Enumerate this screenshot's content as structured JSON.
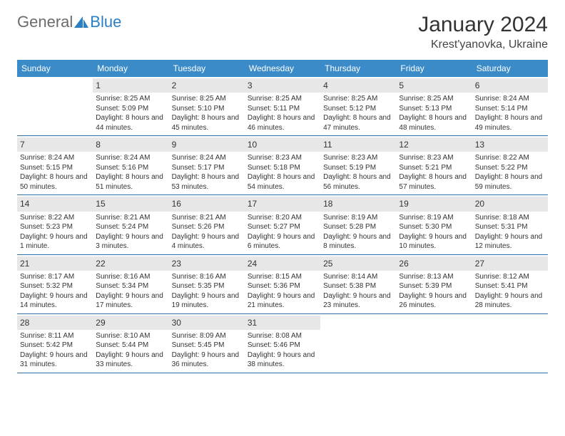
{
  "logo": {
    "word1": "General",
    "word2": "Blue"
  },
  "header": {
    "month": "January 2024",
    "location": "Krest'yanovka, Ukraine"
  },
  "colors": {
    "header_bg": "#3b8bc9",
    "header_text": "#ffffff",
    "daynum_bg": "#e7e7e7",
    "rule": "#2f6fa8",
    "logo_gray": "#6b6b6b",
    "logo_blue": "#2d7fc4"
  },
  "dow": [
    "Sunday",
    "Monday",
    "Tuesday",
    "Wednesday",
    "Thursday",
    "Friday",
    "Saturday"
  ],
  "weeks": [
    [
      {
        "n": "",
        "sr": "",
        "ss": "",
        "dl": ""
      },
      {
        "n": "1",
        "sr": "Sunrise: 8:25 AM",
        "ss": "Sunset: 5:09 PM",
        "dl": "Daylight: 8 hours and 44 minutes."
      },
      {
        "n": "2",
        "sr": "Sunrise: 8:25 AM",
        "ss": "Sunset: 5:10 PM",
        "dl": "Daylight: 8 hours and 45 minutes."
      },
      {
        "n": "3",
        "sr": "Sunrise: 8:25 AM",
        "ss": "Sunset: 5:11 PM",
        "dl": "Daylight: 8 hours and 46 minutes."
      },
      {
        "n": "4",
        "sr": "Sunrise: 8:25 AM",
        "ss": "Sunset: 5:12 PM",
        "dl": "Daylight: 8 hours and 47 minutes."
      },
      {
        "n": "5",
        "sr": "Sunrise: 8:25 AM",
        "ss": "Sunset: 5:13 PM",
        "dl": "Daylight: 8 hours and 48 minutes."
      },
      {
        "n": "6",
        "sr": "Sunrise: 8:24 AM",
        "ss": "Sunset: 5:14 PM",
        "dl": "Daylight: 8 hours and 49 minutes."
      }
    ],
    [
      {
        "n": "7",
        "sr": "Sunrise: 8:24 AM",
        "ss": "Sunset: 5:15 PM",
        "dl": "Daylight: 8 hours and 50 minutes."
      },
      {
        "n": "8",
        "sr": "Sunrise: 8:24 AM",
        "ss": "Sunset: 5:16 PM",
        "dl": "Daylight: 8 hours and 51 minutes."
      },
      {
        "n": "9",
        "sr": "Sunrise: 8:24 AM",
        "ss": "Sunset: 5:17 PM",
        "dl": "Daylight: 8 hours and 53 minutes."
      },
      {
        "n": "10",
        "sr": "Sunrise: 8:23 AM",
        "ss": "Sunset: 5:18 PM",
        "dl": "Daylight: 8 hours and 54 minutes."
      },
      {
        "n": "11",
        "sr": "Sunrise: 8:23 AM",
        "ss": "Sunset: 5:19 PM",
        "dl": "Daylight: 8 hours and 56 minutes."
      },
      {
        "n": "12",
        "sr": "Sunrise: 8:23 AM",
        "ss": "Sunset: 5:21 PM",
        "dl": "Daylight: 8 hours and 57 minutes."
      },
      {
        "n": "13",
        "sr": "Sunrise: 8:22 AM",
        "ss": "Sunset: 5:22 PM",
        "dl": "Daylight: 8 hours and 59 minutes."
      }
    ],
    [
      {
        "n": "14",
        "sr": "Sunrise: 8:22 AM",
        "ss": "Sunset: 5:23 PM",
        "dl": "Daylight: 9 hours and 1 minute."
      },
      {
        "n": "15",
        "sr": "Sunrise: 8:21 AM",
        "ss": "Sunset: 5:24 PM",
        "dl": "Daylight: 9 hours and 3 minutes."
      },
      {
        "n": "16",
        "sr": "Sunrise: 8:21 AM",
        "ss": "Sunset: 5:26 PM",
        "dl": "Daylight: 9 hours and 4 minutes."
      },
      {
        "n": "17",
        "sr": "Sunrise: 8:20 AM",
        "ss": "Sunset: 5:27 PM",
        "dl": "Daylight: 9 hours and 6 minutes."
      },
      {
        "n": "18",
        "sr": "Sunrise: 8:19 AM",
        "ss": "Sunset: 5:28 PM",
        "dl": "Daylight: 9 hours and 8 minutes."
      },
      {
        "n": "19",
        "sr": "Sunrise: 8:19 AM",
        "ss": "Sunset: 5:30 PM",
        "dl": "Daylight: 9 hours and 10 minutes."
      },
      {
        "n": "20",
        "sr": "Sunrise: 8:18 AM",
        "ss": "Sunset: 5:31 PM",
        "dl": "Daylight: 9 hours and 12 minutes."
      }
    ],
    [
      {
        "n": "21",
        "sr": "Sunrise: 8:17 AM",
        "ss": "Sunset: 5:32 PM",
        "dl": "Daylight: 9 hours and 14 minutes."
      },
      {
        "n": "22",
        "sr": "Sunrise: 8:16 AM",
        "ss": "Sunset: 5:34 PM",
        "dl": "Daylight: 9 hours and 17 minutes."
      },
      {
        "n": "23",
        "sr": "Sunrise: 8:16 AM",
        "ss": "Sunset: 5:35 PM",
        "dl": "Daylight: 9 hours and 19 minutes."
      },
      {
        "n": "24",
        "sr": "Sunrise: 8:15 AM",
        "ss": "Sunset: 5:36 PM",
        "dl": "Daylight: 9 hours and 21 minutes."
      },
      {
        "n": "25",
        "sr": "Sunrise: 8:14 AM",
        "ss": "Sunset: 5:38 PM",
        "dl": "Daylight: 9 hours and 23 minutes."
      },
      {
        "n": "26",
        "sr": "Sunrise: 8:13 AM",
        "ss": "Sunset: 5:39 PM",
        "dl": "Daylight: 9 hours and 26 minutes."
      },
      {
        "n": "27",
        "sr": "Sunrise: 8:12 AM",
        "ss": "Sunset: 5:41 PM",
        "dl": "Daylight: 9 hours and 28 minutes."
      }
    ],
    [
      {
        "n": "28",
        "sr": "Sunrise: 8:11 AM",
        "ss": "Sunset: 5:42 PM",
        "dl": "Daylight: 9 hours and 31 minutes."
      },
      {
        "n": "29",
        "sr": "Sunrise: 8:10 AM",
        "ss": "Sunset: 5:44 PM",
        "dl": "Daylight: 9 hours and 33 minutes."
      },
      {
        "n": "30",
        "sr": "Sunrise: 8:09 AM",
        "ss": "Sunset: 5:45 PM",
        "dl": "Daylight: 9 hours and 36 minutes."
      },
      {
        "n": "31",
        "sr": "Sunrise: 8:08 AM",
        "ss": "Sunset: 5:46 PM",
        "dl": "Daylight: 9 hours and 38 minutes."
      },
      {
        "n": "",
        "sr": "",
        "ss": "",
        "dl": ""
      },
      {
        "n": "",
        "sr": "",
        "ss": "",
        "dl": ""
      },
      {
        "n": "",
        "sr": "",
        "ss": "",
        "dl": ""
      }
    ]
  ]
}
